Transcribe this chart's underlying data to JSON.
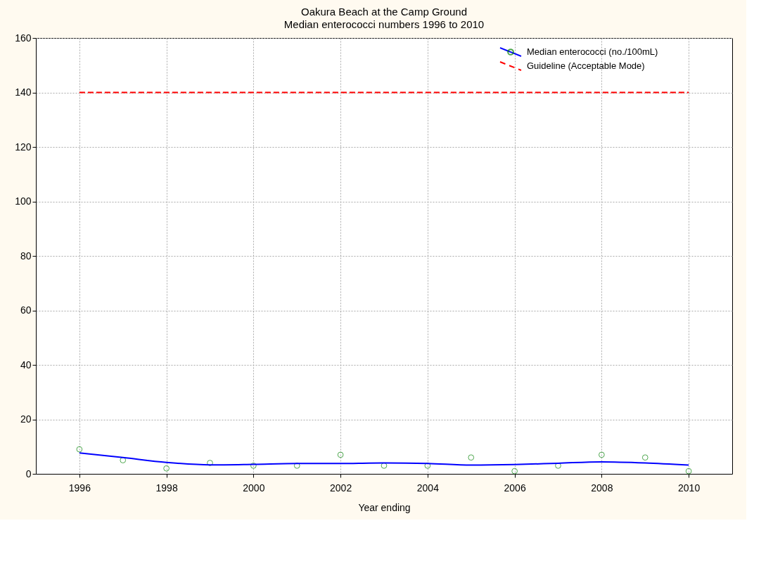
{
  "chart_data": {
    "type": "scatter",
    "title": "Oakura Beach at the Camp Ground",
    "subtitle": "Median enterococci numbers 1996 to 2010",
    "xlabel": "Year ending",
    "x": [
      1996,
      1997,
      1998,
      1999,
      2000,
      2001,
      2002,
      2003,
      2004,
      2005,
      2006,
      2007,
      2008,
      2009,
      2010
    ],
    "series": [
      {
        "name": "Median enterococci (no./100mL)",
        "marker": "circle",
        "color": "#008000",
        "values": [
          9,
          5,
          2,
          4,
          3,
          3,
          7,
          3,
          3,
          6,
          1,
          3,
          7,
          6,
          1
        ]
      },
      {
        "type": "line",
        "color": "#0000ff",
        "line_style": "solid",
        "values": [
          7.7,
          6,
          4.2,
          3.3,
          3.5,
          3.8,
          3.8,
          4,
          3.8,
          3.2,
          3.4,
          3.9,
          4.4,
          4,
          3.2
        ]
      },
      {
        "name": "Guideline (Acceptable Mode)",
        "type": "line",
        "color": "#ff0000",
        "line_style": "dashed",
        "x": [
          1996,
          2010
        ],
        "values": [
          140,
          140
        ]
      }
    ],
    "xlim": [
      1995,
      2011
    ],
    "xticks": [
      1996,
      1998,
      2000,
      2002,
      2004,
      2006,
      2008,
      2010
    ],
    "ylim": [
      0,
      160
    ],
    "yticks": [
      0,
      20,
      40,
      60,
      80,
      100,
      120,
      140,
      160
    ],
    "grid": true,
    "legend": "top right"
  }
}
